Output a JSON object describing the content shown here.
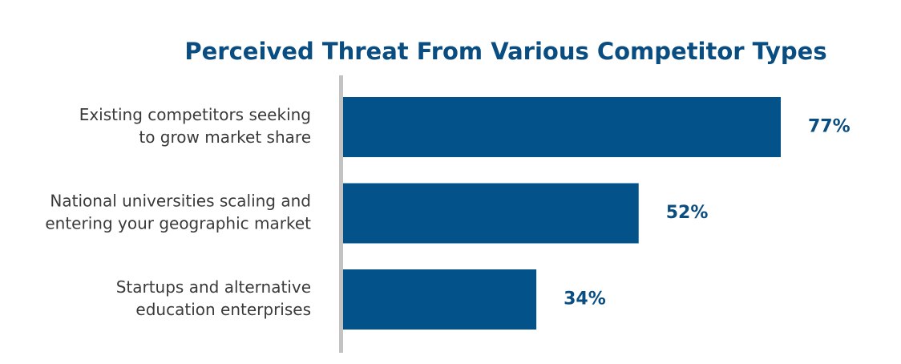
{
  "chart_data": {
    "type": "bar",
    "orientation": "horizontal",
    "title": "Perceived Threat From Various Competitor Types",
    "categories": [
      [
        "Existing competitors seeking",
        "to grow market share"
      ],
      [
        "National universities scaling and",
        "entering your geographic market"
      ],
      [
        "Startups and alternative",
        "education enterprises"
      ]
    ],
    "values": [
      77,
      52,
      34
    ],
    "value_labels": [
      "77%",
      "52%",
      "34%"
    ],
    "unit": "%",
    "xlim": [
      0,
      100
    ],
    "grid": false,
    "legend": "none",
    "xaxis_visible": false
  },
  "colors": {
    "bar": "#03528a",
    "title": "#0a4d80",
    "value_label": "#0a4d80",
    "category_label": "#3a3a3a",
    "axis_line": "#c3c3c3"
  }
}
